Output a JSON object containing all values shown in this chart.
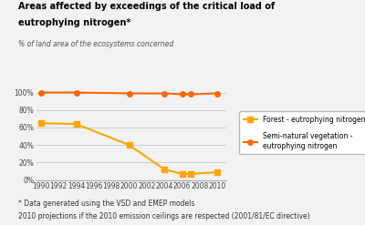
{
  "title_line1": "Areas affected by exceedings of the critical load of",
  "title_line2": "eutrophying nitrogen*",
  "subtitle": "% of land area of the ecosystems concerned",
  "footnote1": "* Data generated using the VSD and EMEP models",
  "footnote2": "2010 projections if the 2010 emission ceilings are respected (2001/81/EC directive)",
  "x_years": [
    1990,
    1992,
    1994,
    1996,
    1998,
    2000,
    2002,
    2004,
    2006,
    2008,
    2010
  ],
  "forest_x": [
    1990,
    1994,
    2000,
    2004,
    2006,
    2007,
    2010
  ],
  "forest_y": [
    65,
    64,
    40,
    12,
    7,
    7,
    9
  ],
  "seminal_x": [
    1990,
    1994,
    2000,
    2004,
    2006,
    2007,
    2010
  ],
  "seminal_y": [
    100,
    100,
    99,
    99,
    98,
    98,
    99
  ],
  "forest_color": "#FFA500",
  "seminal_color": "#FF6600",
  "ylim": [
    0,
    108
  ],
  "yticks": [
    0,
    20,
    40,
    60,
    80,
    100
  ],
  "yticklabels": [
    "0%",
    "20%",
    "40%",
    "60%",
    "80%",
    "100%"
  ],
  "bg_color": "#f2f2f2",
  "legend_forest": "Forest - eutrophying nitrogen",
  "legend_seminal": "Semi-natural vegetation -\neutrophying nitrogen"
}
